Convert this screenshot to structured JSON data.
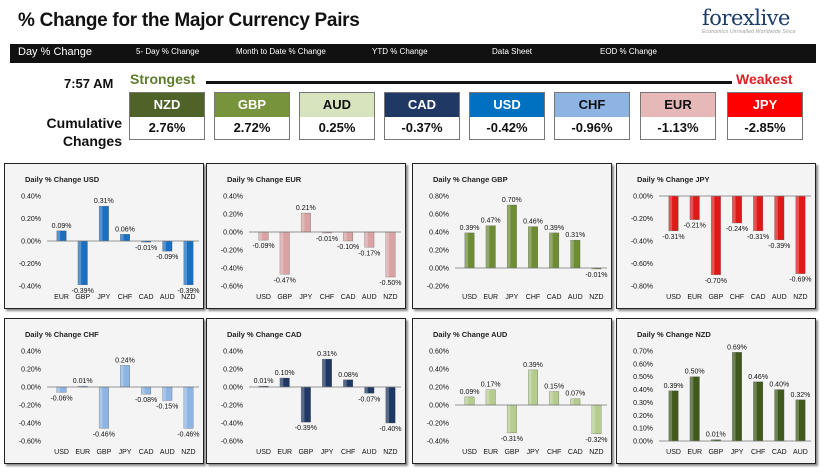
{
  "header": {
    "title": "% Change for the Major Currency Pairs",
    "logo": "forexlive",
    "logo_sub": "Economics Unrivalled Worldwide Since"
  },
  "nav": {
    "items": [
      "Day % Change",
      "5- Day % Change",
      "Month to Date % Change",
      "YTD % Change",
      "Data Sheet",
      "EOD % Change"
    ]
  },
  "summary": {
    "time": "7:57 AM",
    "strongest": "Strongest",
    "weakest": "Weakest",
    "cumulative_line1": "Cumulative",
    "cumulative_line2": "Changes",
    "pairs": [
      {
        "name": "NZD",
        "value": "2.76%",
        "bg": "#4f6228",
        "fg": "#ffffff"
      },
      {
        "name": "GBP",
        "value": "2.72%",
        "bg": "#77933c",
        "fg": "#ffffff"
      },
      {
        "name": "AUD",
        "value": "0.25%",
        "bg": "#d7e4bd",
        "fg": "#111111"
      },
      {
        "name": "CAD",
        "value": "-0.37%",
        "bg": "#1f3864",
        "fg": "#ffffff"
      },
      {
        "name": "USD",
        "value": "-0.42%",
        "bg": "#0070c0",
        "fg": "#ffffff"
      },
      {
        "name": "CHF",
        "value": "-0.96%",
        "bg": "#8db4e2",
        "fg": "#111111"
      },
      {
        "name": "EUR",
        "value": "-1.13%",
        "bg": "#e6b9b8",
        "fg": "#111111"
      },
      {
        "name": "JPY",
        "value": "-2.85%",
        "bg": "#ff0000",
        "fg": "#ffffff"
      }
    ]
  },
  "colors": {
    "USD": "#1a6fc0",
    "EUR": "#d9a3a3",
    "GBP": "#6e8c34",
    "JPY": "#e01818",
    "CHF": "#8db4e2",
    "CAD": "#1f3864",
    "AUD": "#b5cc8e",
    "NZD": "#3f5a1c"
  },
  "chart_data": [
    {
      "type": "bar",
      "title": "Daily % Change USD",
      "categories": [
        "EUR",
        "GBP",
        "JPY",
        "CHF",
        "CAD",
        "AUD",
        "NZD"
      ],
      "values": [
        0.09,
        -0.39,
        0.31,
        0.06,
        -0.01,
        -0.09,
        -0.39
      ],
      "labels": [
        "0.09%",
        "-0.39%",
        "0.31%",
        "0.06%",
        "-0.01%",
        "-0.09%",
        "-0.39%"
      ],
      "ylim": [
        -0.4,
        0.4
      ],
      "ticks": [
        -0.4,
        -0.2,
        0,
        0.2,
        0.4
      ],
      "tick_labels": [
        "-0.40%",
        "-0.20%",
        "0.00%",
        "0.20%",
        "0.40%"
      ],
      "color": "USD"
    },
    {
      "type": "bar",
      "title": "Daily % Change EUR",
      "categories": [
        "USD",
        "GBP",
        "JPY",
        "CHF",
        "CAD",
        "AUD",
        "NZD"
      ],
      "values": [
        -0.09,
        -0.47,
        0.21,
        -0.01,
        -0.1,
        -0.17,
        -0.5
      ],
      "labels": [
        "-0.09%",
        "-0.47%",
        "0.21%",
        "-0.01%",
        "-0.10%",
        "-0.17%",
        "-0.50%"
      ],
      "ylim": [
        -0.6,
        0.4
      ],
      "ticks": [
        -0.6,
        -0.4,
        -0.2,
        0,
        0.2,
        0.4
      ],
      "tick_labels": [
        "-0.60%",
        "-0.40%",
        "-0.20%",
        "0.00%",
        "0.20%",
        "0.40%"
      ],
      "color": "EUR"
    },
    {
      "type": "bar",
      "title": "Daily % Change GBP",
      "categories": [
        "USD",
        "EUR",
        "JPY",
        "CHF",
        "CAD",
        "AUD",
        "NZD"
      ],
      "values": [
        0.39,
        0.47,
        0.7,
        0.46,
        0.39,
        0.31,
        -0.01
      ],
      "labels": [
        "0.39%",
        "0.47%",
        "0.70%",
        "0.46%",
        "0.39%",
        "0.31%",
        "-0.01%"
      ],
      "ylim": [
        -0.2,
        0.8
      ],
      "ticks": [
        -0.2,
        0,
        0.2,
        0.4,
        0.6,
        0.8
      ],
      "tick_labels": [
        "-0.20%",
        "0.00%",
        "0.20%",
        "0.40%",
        "0.60%",
        "0.80%"
      ],
      "color": "GBP"
    },
    {
      "type": "bar",
      "title": "Daily % Change JPY",
      "categories": [
        "USD",
        "EUR",
        "GBP",
        "CHF",
        "CAD",
        "AUD",
        "NZD"
      ],
      "values": [
        -0.31,
        -0.21,
        -0.7,
        -0.24,
        -0.31,
        -0.39,
        -0.69
      ],
      "labels": [
        "-0.31%",
        "-0.21%",
        "-0.70%",
        "-0.24%",
        "-0.31%",
        "-0.39%",
        "-0.69%"
      ],
      "ylim": [
        -0.8,
        0
      ],
      "ticks": [
        -0.8,
        -0.6,
        -0.4,
        -0.2,
        0
      ],
      "tick_labels": [
        "-0.80%",
        "-0.60%",
        "-0.40%",
        "-0.20%",
        "0.00%"
      ],
      "color": "JPY"
    },
    {
      "type": "bar",
      "title": "Daily % Change CHF",
      "categories": [
        "USD",
        "EUR",
        "GBP",
        "JPY",
        "CAD",
        "AUD",
        "NZD"
      ],
      "values": [
        -0.06,
        0.01,
        -0.46,
        0.24,
        -0.08,
        -0.15,
        -0.46
      ],
      "labels": [
        "-0.06%",
        "0.01%",
        "-0.46%",
        "0.24%",
        "-0.08%",
        "-0.15%",
        "-0.46%"
      ],
      "ylim": [
        -0.6,
        0.4
      ],
      "ticks": [
        -0.6,
        -0.4,
        -0.2,
        0,
        0.2,
        0.4
      ],
      "tick_labels": [
        "-0.60%",
        "-0.40%",
        "-0.20%",
        "0.00%",
        "0.20%",
        "0.40%"
      ],
      "color": "CHF"
    },
    {
      "type": "bar",
      "title": "Daily % Change CAD",
      "categories": [
        "USD",
        "EUR",
        "GBP",
        "JPY",
        "CHF",
        "AUD",
        "NZD"
      ],
      "values": [
        0.01,
        0.1,
        -0.39,
        0.31,
        0.08,
        -0.07,
        -0.4
      ],
      "labels": [
        "0.01%",
        "0.10%",
        "-0.39%",
        "0.31%",
        "0.08%",
        "-0.07%",
        "-0.40%"
      ],
      "ylim": [
        -0.6,
        0.4
      ],
      "ticks": [
        -0.6,
        -0.4,
        -0.2,
        0,
        0.2,
        0.4
      ],
      "tick_labels": [
        "-0.60%",
        "-0.40%",
        "-0.20%",
        "0.00%",
        "0.20%",
        "0.40%"
      ],
      "color": "CAD"
    },
    {
      "type": "bar",
      "title": "Daily % Change AUD",
      "categories": [
        "USD",
        "EUR",
        "GBP",
        "JPY",
        "CHF",
        "CAD",
        "NZD"
      ],
      "values": [
        0.09,
        0.17,
        -0.31,
        0.39,
        0.15,
        0.07,
        -0.32
      ],
      "labels": [
        "0.09%",
        "0.17%",
        "-0.31%",
        "0.39%",
        "0.15%",
        "0.07%",
        "-0.32%"
      ],
      "ylim": [
        -0.4,
        0.6
      ],
      "ticks": [
        -0.4,
        -0.2,
        0,
        0.2,
        0.4,
        0.6
      ],
      "tick_labels": [
        "-0.40%",
        "-0.20%",
        "0.00%",
        "0.20%",
        "0.40%",
        "0.60%"
      ],
      "color": "AUD"
    },
    {
      "type": "bar",
      "title": "Daily % Change NZD",
      "categories": [
        "USD",
        "EUR",
        "GBP",
        "JPY",
        "CHF",
        "CAD",
        "AUD"
      ],
      "values": [
        0.39,
        0.5,
        0.01,
        0.69,
        0.46,
        0.4,
        0.32
      ],
      "labels": [
        "0.39%",
        "0.50%",
        "0.01%",
        "0.69%",
        "0.46%",
        "0.40%",
        "0.32%"
      ],
      "ylim": [
        0,
        0.7
      ],
      "ticks": [
        0,
        0.1,
        0.2,
        0.3,
        0.4,
        0.5,
        0.6,
        0.7
      ],
      "tick_labels": [
        "0.00%",
        "0.10%",
        "0.20%",
        "0.30%",
        "0.40%",
        "0.50%",
        "0.60%",
        "0.70%"
      ],
      "color": "NZD"
    }
  ]
}
